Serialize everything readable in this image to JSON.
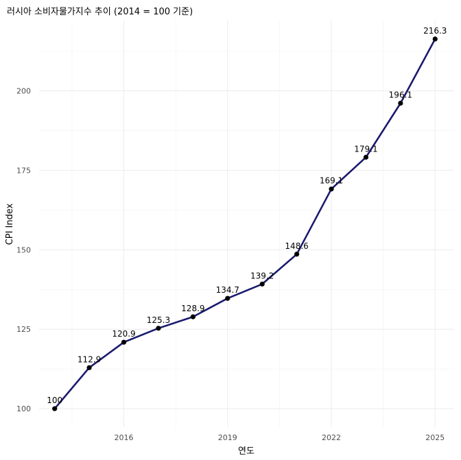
{
  "chart_data": {
    "type": "line",
    "title": "러시아 소비자물가지수 추이 (2014 = 100 기준)",
    "xlabel": "연도",
    "ylabel": "CPI Index",
    "x": [
      2014,
      2015,
      2016,
      2017,
      2018,
      2019,
      2020,
      2021,
      2022,
      2023,
      2024,
      2025
    ],
    "series": [
      {
        "values": [
          100,
          112.9,
          120.9,
          125.3,
          128.9,
          134.7,
          139.2,
          148.6,
          169.1,
          179.1,
          196.1,
          216.3
        ]
      }
    ],
    "point_labels": [
      "100",
      "112.9",
      "120.9",
      "125.3",
      "128.9",
      "134.7",
      "139.2",
      "148.6",
      "169.1",
      "179.1",
      "196.1",
      "216.3"
    ],
    "x_ticks": [
      2016,
      2019,
      2022,
      2025
    ],
    "y_ticks": [
      100,
      125,
      150,
      175,
      200
    ],
    "xlim": [
      2013.55,
      2025.55
    ],
    "ylim": [
      94.2,
      222.1
    ],
    "grid": true,
    "line_color": "#1a1a6e",
    "point_color": "#000000"
  }
}
